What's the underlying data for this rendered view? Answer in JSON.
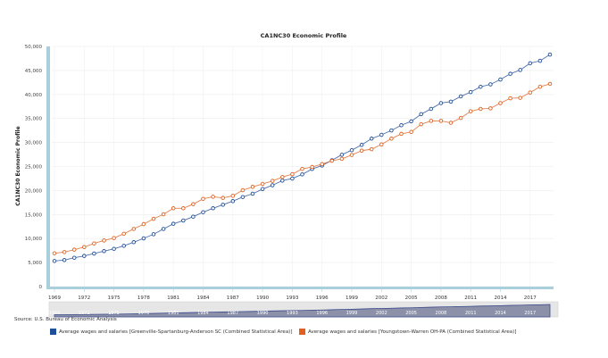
{
  "chart_data": {
    "type": "line",
    "title": "CA1NC30 Economic Profile",
    "ylabel": "CA1NC30 Economic Profile",
    "xlabel": "",
    "ylim": [
      0,
      50000
    ],
    "yticks": [
      0,
      5000,
      10000,
      15000,
      20000,
      25000,
      30000,
      35000,
      40000,
      45000,
      50000
    ],
    "ytick_labels": [
      "0",
      "5,000",
      "10,000",
      "15,000",
      "20,000",
      "25,000",
      "30,000",
      "35,000",
      "40,000",
      "45,000",
      "50,000"
    ],
    "xlim": [
      1969,
      2019
    ],
    "xtick_labels": [
      "1969",
      "1972",
      "1975",
      "1978",
      "1981",
      "1984",
      "1987",
      "1990",
      "1993",
      "1996",
      "1999",
      "2002",
      "2005",
      "2008",
      "2011",
      "2014",
      "2017"
    ],
    "grid": true,
    "legend_position": "bottom",
    "x_start": 1969,
    "series": [
      {
        "name": "Average wages and salaries [Greenville-Spartanburg-Anderson SC (Combined Statistical Area)]",
        "color": "#1f4e9a",
        "values": [
          5330,
          5520,
          6000,
          6380,
          6880,
          7380,
          7860,
          8490,
          9240,
          10040,
          10900,
          12000,
          13070,
          13750,
          14550,
          15480,
          16300,
          17040,
          17790,
          18640,
          19330,
          20300,
          21100,
          22060,
          22500,
          23360,
          24480,
          25200,
          26300,
          27450,
          28400,
          29500,
          30800,
          31600,
          32500,
          33600,
          34400,
          35900,
          37000,
          38200,
          38500,
          39600,
          40500,
          41600,
          42100,
          43100,
          44300,
          45100,
          46500,
          47000,
          48300
        ]
      },
      {
        "name": "Average wages and salaries [Youngstown-Warren OH-PA (Combined Statistical Area)]",
        "color": "#e0611f",
        "values": [
          6930,
          7190,
          7680,
          8230,
          8980,
          9600,
          10100,
          11000,
          12000,
          13000,
          14100,
          15060,
          16300,
          16300,
          17160,
          18270,
          18700,
          18460,
          18900,
          20070,
          20760,
          21370,
          22000,
          22800,
          23400,
          24500,
          24900,
          25500,
          26200,
          26600,
          27400,
          28300,
          28600,
          29600,
          30800,
          31800,
          32200,
          33800,
          34500,
          34500,
          34100,
          35100,
          36500,
          37000,
          37100,
          38200,
          39200,
          39300,
          40400,
          41600,
          42200
        ]
      }
    ]
  },
  "source": "Source: U.S. Bureau of Economic Analysis",
  "colors": {
    "axis_bar": "#a9cfdc",
    "navigator_bg": "#e6e6e6",
    "navigator_fill": "#8c90a8",
    "navigator_line": "#3a4a8a"
  }
}
